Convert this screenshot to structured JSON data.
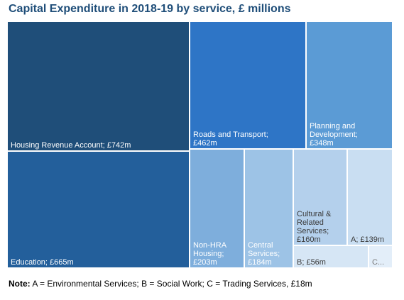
{
  "chart_data": {
    "type": "treemap",
    "title": "Capital Expenditure in 2018-19 by service, £ millions",
    "unit": "£ millions",
    "items": [
      {
        "label_lines": [
          "Housing Revenue  Account; £742m"
        ],
        "value": 742,
        "color": "#1f4e79",
        "text_color": "#ffffff"
      },
      {
        "label_lines": [
          "Education; £665m"
        ],
        "value": 665,
        "color": "#235f9b",
        "text_color": "#ffffff"
      },
      {
        "label_lines": [
          "Roads and Transport;",
          "£462m"
        ],
        "value": 462,
        "color": "#2e75c6",
        "text_color": "#ffffff"
      },
      {
        "label_lines": [
          "Planning and",
          "Development;",
          "£348m"
        ],
        "value": 348,
        "color": "#5b9bd5",
        "text_color": "#ffffff"
      },
      {
        "label_lines": [
          "Non-HRA",
          "Housing;",
          "£203m"
        ],
        "value": 203,
        "color": "#7eaedc",
        "text_color": "#ffffff"
      },
      {
        "label_lines": [
          "Central",
          "Services;",
          "£184m"
        ],
        "value": 184,
        "color": "#9dc3e6",
        "text_color": "#ffffff"
      },
      {
        "label_lines": [
          "Cultural &",
          "Related",
          "Services;",
          "£160m"
        ],
        "value": 160,
        "color": "#b4d0ec",
        "text_color": "#3a3a3a"
      },
      {
        "label_lines": [
          "A; £139m"
        ],
        "value": 139,
        "color": "#c9def2",
        "text_color": "#3a3a3a"
      },
      {
        "label_lines": [
          "B; £56m"
        ],
        "value": 56,
        "color": "#d6e6f5",
        "text_color": "#3a3a3a"
      },
      {
        "label_lines": [
          "C..."
        ],
        "value": 18,
        "color": "#e3eef9",
        "text_color": "#7a7a7a"
      }
    ]
  },
  "note": {
    "prefix": "Note:",
    "text": " A = Environmental Services; B = Social Work; C = Trading Services, £18m"
  }
}
